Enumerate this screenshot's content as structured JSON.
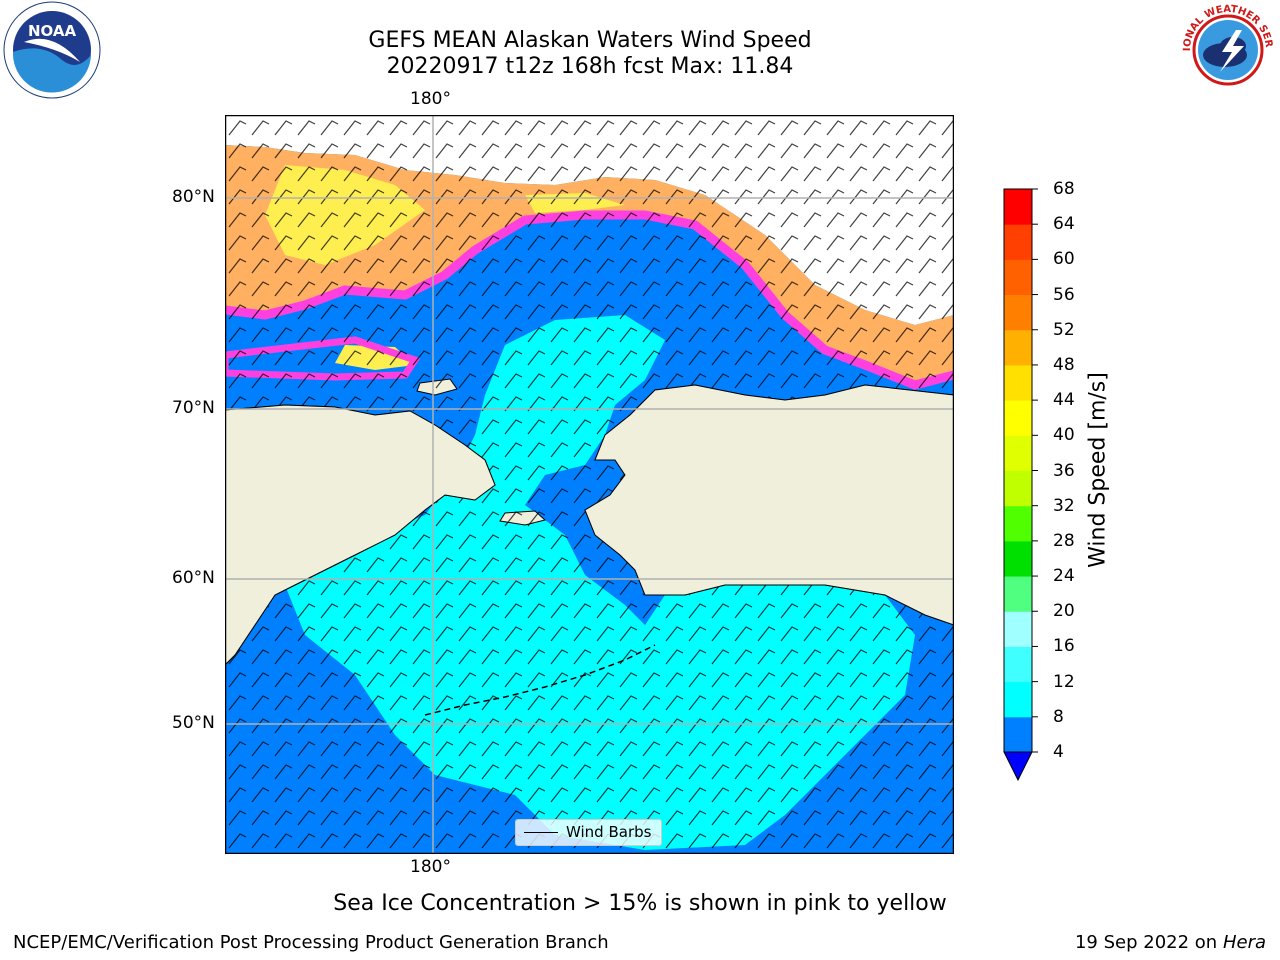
{
  "title_line1": "GEFS MEAN Alaskan Waters Wind Speed",
  "title_line2": "20220917 t12z 168h fcst   Max: 11.84",
  "axis_ticks": {
    "lon_top": "180°",
    "lon_bottom": "180°",
    "lat": [
      "80°N",
      "70°N",
      "60°N",
      "50°N"
    ]
  },
  "colorbar": {
    "label": "Wind Speed [m/s]",
    "ticks": [
      "4",
      "8",
      "12",
      "16",
      "20",
      "24",
      "28",
      "32",
      "36",
      "40",
      "44",
      "48",
      "52",
      "56",
      "60",
      "64",
      "68"
    ],
    "colors": [
      "#0080ff",
      "#00ffff",
      "#40ffff",
      "#a0ffff",
      "#50ff80",
      "#00e000",
      "#50ff00",
      "#c0ff00",
      "#e0ff00",
      "#ffff00",
      "#ffe000",
      "#ffb000",
      "#ff8000",
      "#ff6000",
      "#ff4000",
      "#ff0000"
    ],
    "under_color": "#0000ff"
  },
  "legend_label": "Wind Barbs",
  "caption": "Sea Ice Concentration > 15% is shown in pink to yellow",
  "footer_left": "NCEP/EMC/Verification Post Processing Product Generation Branch",
  "footer_right_prefix": "19 Sep 2022 on",
  "footer_right_machine": "Hera",
  "logos": {
    "left": {
      "icon": "noaa-logo",
      "text": "NOAA"
    },
    "right": {
      "icon": "nws-logo",
      "text": "NATIONAL WEATHER SERVICE"
    }
  },
  "map_colors": {
    "ocean_low": "#0080ff",
    "ocean_mid": "#00ffff",
    "land": "#efefdc",
    "ice_edge": "#ff40e0",
    "ice_mid": "#ffb060",
    "ice_core": "#ffee50"
  }
}
